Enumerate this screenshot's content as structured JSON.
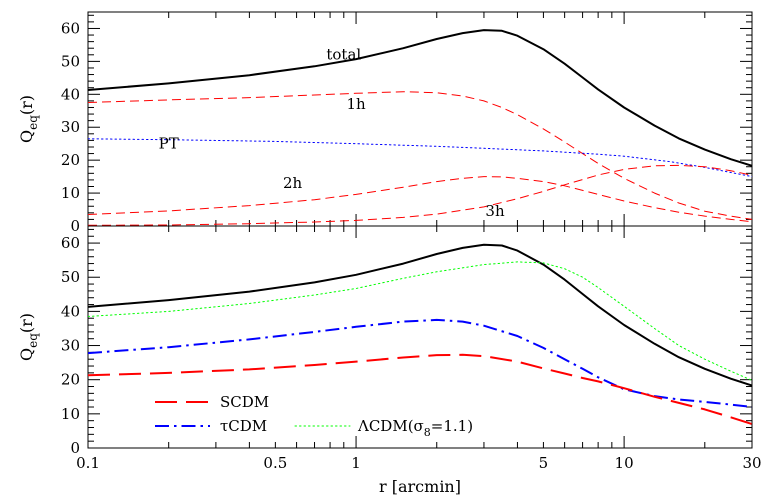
{
  "chart_data": [
    {
      "panel": "top",
      "type": "line",
      "xscale": "log",
      "xlim": [
        0.1,
        30
      ],
      "ylim": [
        0,
        65
      ],
      "xlabel": "",
      "ylabel_main": "Q",
      "ylabel_sub": "eq",
      "ylabel_arg": "(r)",
      "yticks": [
        0,
        10,
        20,
        30,
        40,
        50,
        60
      ],
      "annotations": [
        {
          "text": "total",
          "x": 0.9,
          "y": 50.5
        },
        {
          "text": "1h",
          "x": 1.0,
          "y": 35.5
        },
        {
          "text": "PT",
          "x": 0.2,
          "y": 23.5
        },
        {
          "text": "2h",
          "x": 0.58,
          "y": 11.5
        },
        {
          "text": "3h",
          "x": 3.3,
          "y": 3
        }
      ],
      "series": [
        {
          "key": "total",
          "color": "#000000",
          "style": "solid",
          "x": [
            0.1,
            0.2,
            0.4,
            0.7,
            1,
            1.5,
            2,
            2.5,
            3,
            3.5,
            4,
            5,
            6,
            7,
            8,
            10,
            13,
            16,
            20,
            25,
            30
          ],
          "y": [
            41.3,
            43.3,
            45.8,
            48.5,
            50.7,
            54.0,
            56.8,
            58.6,
            59.5,
            59.3,
            57.8,
            53.7,
            49.3,
            45.1,
            41.5,
            36.0,
            30.5,
            26.6,
            23.2,
            20.3,
            18.3
          ]
        },
        {
          "key": "1h",
          "color": "#ff0000",
          "style": "dashed",
          "x": [
            0.1,
            0.2,
            0.4,
            0.7,
            1,
            1.5,
            2,
            2.5,
            3,
            3.5,
            4,
            5,
            6,
            7,
            8,
            10,
            13,
            16,
            20,
            25,
            30
          ],
          "y": [
            37.5,
            38.3,
            39.0,
            39.8,
            40.3,
            40.8,
            40.5,
            39.5,
            38.0,
            36.0,
            33.8,
            29.5,
            25.5,
            22.0,
            19.0,
            14.5,
            10.0,
            7.0,
            4.5,
            3.0,
            2.0
          ]
        },
        {
          "key": "PT",
          "color": "#0000ff",
          "style": "dotted",
          "x": [
            0.1,
            0.2,
            0.5,
            1,
            2,
            3,
            5,
            8,
            10,
            15,
            20,
            30
          ],
          "y": [
            26.5,
            26.2,
            25.7,
            25.0,
            24.2,
            23.6,
            22.8,
            21.8,
            21.2,
            19.5,
            17.8,
            15.0
          ]
        },
        {
          "key": "2h",
          "color": "#ff0000",
          "style": "dashed",
          "x": [
            0.1,
            0.2,
            0.4,
            0.7,
            1,
            1.5,
            2,
            2.5,
            3,
            3.5,
            4,
            5,
            6,
            7,
            8,
            10,
            13,
            16,
            20,
            25,
            30
          ],
          "y": [
            3.5,
            4.6,
            6.2,
            8.0,
            9.6,
            11.8,
            13.5,
            14.5,
            15.0,
            14.9,
            14.5,
            13.5,
            12.2,
            10.8,
            9.6,
            7.6,
            5.6,
            4.2,
            3.0,
            2.0,
            1.3
          ]
        },
        {
          "key": "3h",
          "color": "#ff0000",
          "style": "dashed",
          "x": [
            0.1,
            0.2,
            0.4,
            0.7,
            1,
            1.5,
            2,
            3,
            4,
            5,
            6,
            7,
            8,
            10,
            13,
            16,
            20,
            25,
            30
          ],
          "y": [
            0.2,
            0.3,
            0.7,
            1.2,
            1.7,
            2.6,
            3.6,
            5.8,
            8.3,
            10.5,
            12.5,
            14.1,
            15.5,
            17.2,
            18.3,
            18.4,
            18.0,
            16.8,
            15.4
          ]
        }
      ]
    },
    {
      "panel": "bottom",
      "type": "line",
      "xscale": "log",
      "xlim": [
        0.1,
        30
      ],
      "ylim": [
        0,
        65
      ],
      "xlabel": "r [arcmin]",
      "ylabel_main": "Q",
      "ylabel_sub": "eq",
      "ylabel_arg": "(r)",
      "yticks": [
        0,
        10,
        20,
        30,
        40,
        50,
        60
      ],
      "xticks": [
        0.1,
        0.5,
        1,
        5,
        10,
        30
      ],
      "xtick_labels": [
        "0.1",
        "0.5",
        "1",
        "5",
        "10",
        "30"
      ],
      "legend": [
        {
          "key": "scdm",
          "label": "SCDM"
        },
        {
          "key": "tcdm",
          "label": "τCDM"
        },
        {
          "key": "lcdm",
          "label": "ΛCDM(σ",
          "sub": "8",
          "suffix": "=1.1)"
        }
      ],
      "series": [
        {
          "key": "total",
          "color": "#000000",
          "style": "solid",
          "x": [
            0.1,
            0.2,
            0.4,
            0.7,
            1,
            1.5,
            2,
            2.5,
            3,
            3.5,
            4,
            5,
            6,
            7,
            8,
            10,
            13,
            16,
            20,
            25,
            30
          ],
          "y": [
            41.3,
            43.3,
            45.8,
            48.5,
            50.7,
            54.0,
            56.8,
            58.6,
            59.5,
            59.3,
            57.8,
            53.7,
            49.3,
            45.1,
            41.5,
            36.0,
            30.5,
            26.6,
            23.2,
            20.3,
            18.3
          ]
        },
        {
          "key": "lcdm",
          "color": "#00ff00",
          "style": "dotted",
          "x": [
            0.1,
            0.2,
            0.4,
            0.7,
            1,
            1.5,
            2,
            3,
            4,
            5,
            6,
            7,
            8,
            10,
            13,
            16,
            20,
            25,
            30
          ],
          "y": [
            38.5,
            40.0,
            42.3,
            44.8,
            46.7,
            49.7,
            51.6,
            53.7,
            54.5,
            54.2,
            52.5,
            50.0,
            47.0,
            41.5,
            35.0,
            30.0,
            26.0,
            22.5,
            19.8
          ]
        },
        {
          "key": "tcdm",
          "color": "#0000ff",
          "style": "dashdot",
          "x": [
            0.1,
            0.2,
            0.4,
            0.7,
            1,
            1.5,
            2,
            2.5,
            3,
            4,
            5,
            6,
            7,
            8,
            10,
            13,
            16,
            20,
            25,
            30
          ],
          "y": [
            27.8,
            29.5,
            31.8,
            34.0,
            35.5,
            37.0,
            37.5,
            37.0,
            35.8,
            32.8,
            29.3,
            26.0,
            23.2,
            20.7,
            17.2,
            15.2,
            14.2,
            13.5,
            12.7,
            12.0
          ]
        },
        {
          "key": "scdm",
          "color": "#ff0000",
          "style": "longdash",
          "x": [
            0.1,
            0.2,
            0.4,
            0.7,
            1,
            1.5,
            2,
            2.5,
            3,
            4,
            5,
            6,
            7,
            8,
            10,
            13,
            16,
            20,
            25,
            30
          ],
          "y": [
            21.3,
            22.0,
            23.0,
            24.3,
            25.3,
            26.5,
            27.2,
            27.3,
            26.9,
            25.3,
            23.3,
            21.8,
            20.5,
            19.5,
            17.5,
            15.0,
            13.2,
            11.3,
            9.0,
            7.0
          ]
        }
      ]
    }
  ]
}
